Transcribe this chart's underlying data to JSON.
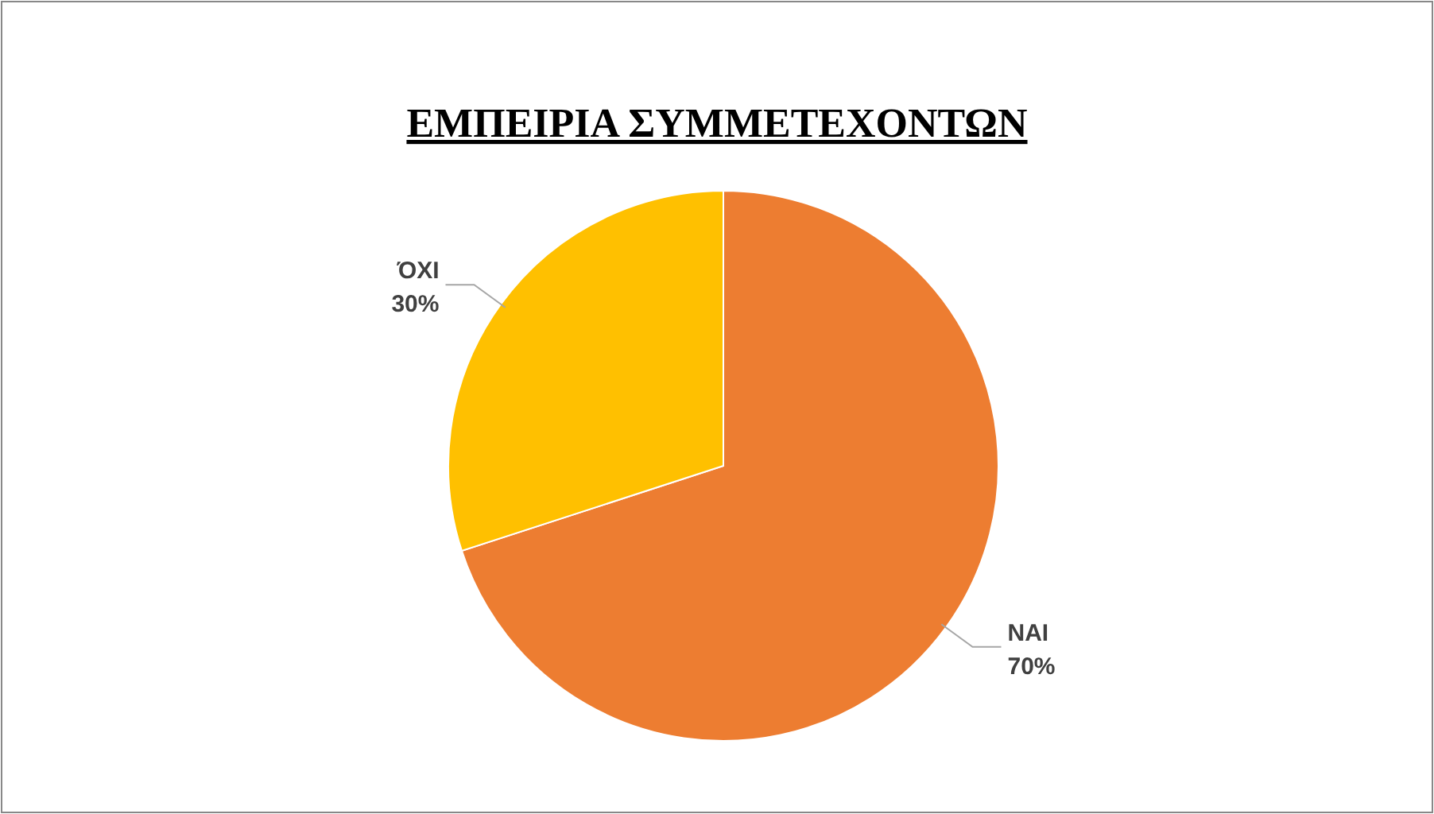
{
  "chart_data": {
    "type": "pie",
    "title": "ΕΜΠΕΙΡΙΑ ΣΥΜΜΕΤΕΧΟΝΤΩΝ",
    "categories": [
      "ΝΑΙ",
      "ΌΧΙ"
    ],
    "values": [
      70,
      30
    ],
    "colors": [
      "#ed7d31",
      "#ffc000"
    ],
    "value_labels": [
      "70%",
      "30%"
    ],
    "legend": false
  }
}
